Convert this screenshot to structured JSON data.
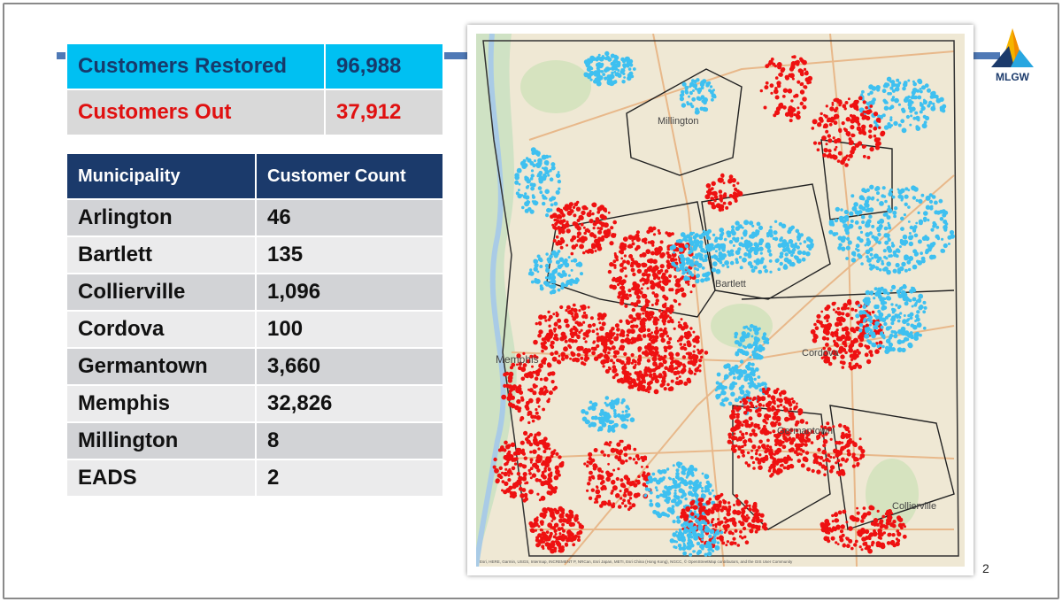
{
  "summary": {
    "restored": {
      "label": "Customers Restored",
      "value": "96,988"
    },
    "out": {
      "label": "Customers Out",
      "value": "37,912"
    }
  },
  "municipalities": {
    "headers": [
      "Municipality",
      "Customer Count"
    ],
    "rows": [
      [
        "Arlington",
        "46"
      ],
      [
        "Bartlett",
        "135"
      ],
      [
        "Collierville",
        "1,096"
      ],
      [
        "Cordova",
        "100"
      ],
      [
        "Germantown",
        "3,660"
      ],
      [
        "Memphis",
        "32,826"
      ],
      [
        "Millington",
        "8"
      ],
      [
        "EADS",
        "2"
      ]
    ]
  },
  "map": {
    "place_labels": [
      "Millington",
      "Memphis",
      "Bartlett",
      "Cordova",
      "Germantown",
      "Collierville"
    ],
    "attribution": "Esri, HERE, Garmin, USGS, Intermap, INCREMENT P, NRCan, Esri Japan, METI, Esri China (Hong Kong), NGCC, © OpenStreetMap contributors, and the GIS User Community",
    "colors": {
      "restored": "#3ec0f0",
      "out": "#ee1111",
      "land": "#efe8d4",
      "boundary": "#222222"
    }
  },
  "logo": {
    "text": "MLGW"
  },
  "page_number": "2"
}
